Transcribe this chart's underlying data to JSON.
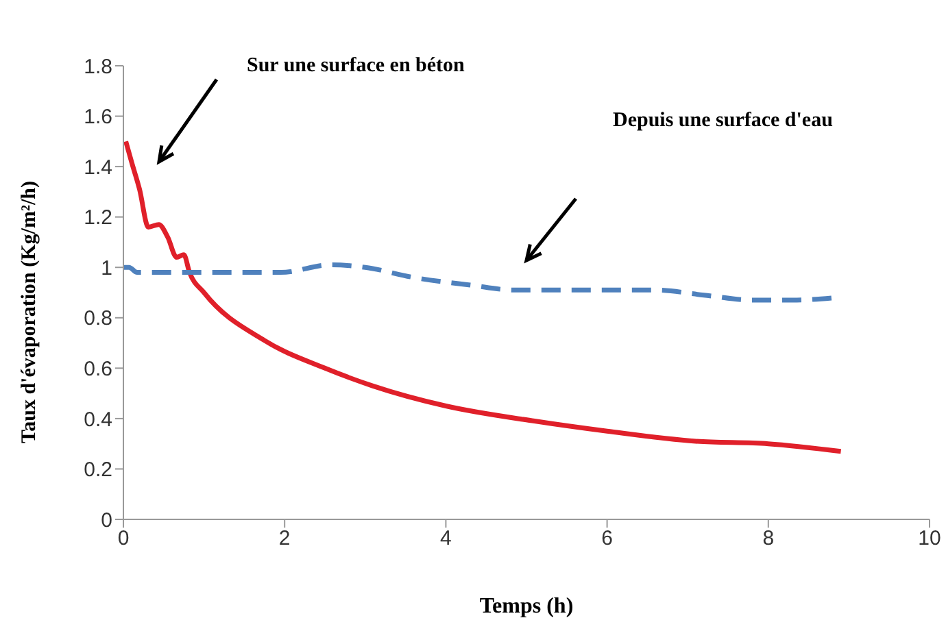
{
  "chart_data": {
    "type": "line",
    "xlabel": "Temps (h)",
    "ylabel": "Taux d'évaporation (Kg/m²/h)",
    "xlim": [
      0,
      10
    ],
    "xticks": [
      0,
      2,
      4,
      6,
      8,
      10
    ],
    "ylim": [
      0,
      1.8
    ],
    "yticks": [
      0,
      0.2,
      0.4,
      0.6,
      0.8,
      1,
      1.2,
      1.4,
      1.6,
      1.8
    ],
    "grid": false,
    "legend": false,
    "marker": "none",
    "series": [
      {
        "color": "#e0202a",
        "line_style": "solid",
        "x": [
          0.03,
          0.1,
          0.2,
          0.31,
          0.44,
          0.55,
          0.66,
          0.75,
          0.82,
          1,
          1.75,
          2.5,
          3.09,
          4,
          5.1,
          6,
          7.1,
          8,
          8.9
        ],
        "values": [
          1.5,
          1.42,
          1.31,
          1.16,
          1.17,
          1.12,
          1.04,
          1.05,
          0.98,
          0.9,
          0.71,
          0.6,
          0.53,
          0.45,
          0.39,
          0.35,
          0.31,
          0.3,
          0.27
        ]
      },
      {
        "color": "#4f81bd",
        "line_style": "dashed",
        "x": [
          0,
          0.07,
          0.17,
          0.68,
          1.35,
          1.95,
          2.57,
          3,
          3.6,
          4.3,
          4.85,
          5.45,
          6.6,
          7.2,
          7.8,
          8.3,
          8.85
        ],
        "values": [
          1,
          1,
          0.98,
          0.98,
          0.98,
          0.98,
          1.01,
          1,
          0.96,
          0.93,
          0.91,
          0.91,
          0.91,
          0.89,
          0.87,
          0.87,
          0.88
        ]
      }
    ],
    "annotations": [
      "Sur une surface en béton",
      "Depuis une surface d'eau"
    ]
  }
}
